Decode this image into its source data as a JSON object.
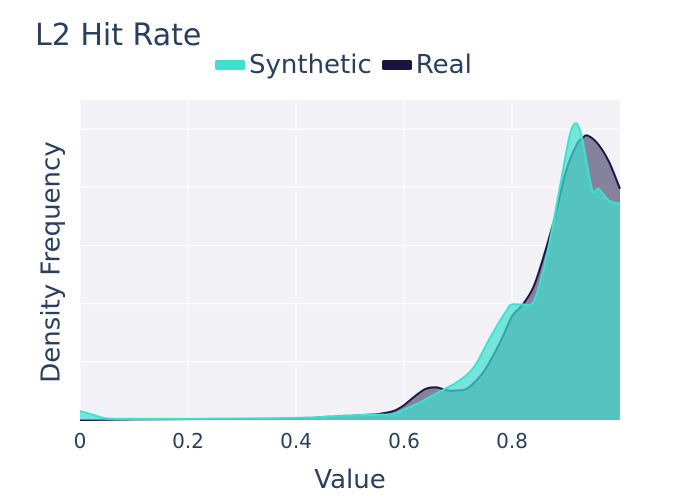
{
  "title": "L2 Hit Rate",
  "chart_data": {
    "type": "area",
    "title": "L2 Hit Rate",
    "xlabel": "Value",
    "ylabel": "Density Frequency",
    "xlim": [
      0,
      1
    ],
    "x_ticks": [
      "0",
      "0.2",
      "0.4",
      "0.6",
      "0.8"
    ],
    "x_tick_values": [
      0,
      0.2,
      0.4,
      0.6,
      0.8
    ],
    "grid": true,
    "legend_position": "top-center",
    "series": [
      {
        "name": "Synthetic",
        "color": "#40e0d0",
        "fill": "rgba(64,224,208,0.70)",
        "x": [
          0,
          0.02,
          0.05,
          0.1,
          0.2,
          0.3,
          0.4,
          0.45,
          0.5,
          0.55,
          0.58,
          0.6,
          0.63,
          0.66,
          0.7,
          0.73,
          0.76,
          0.79,
          0.8,
          0.82,
          0.84,
          0.86,
          0.88,
          0.9,
          0.91,
          0.92,
          0.93,
          0.94,
          0.95,
          0.96,
          0.98,
          1.0
        ],
        "y": [
          0.03,
          0.02,
          0.005,
          0.004,
          0.004,
          0.005,
          0.007,
          0.01,
          0.015,
          0.018,
          0.02,
          0.035,
          0.06,
          0.09,
          0.13,
          0.18,
          0.28,
          0.37,
          0.39,
          0.39,
          0.4,
          0.52,
          0.7,
          0.9,
          0.98,
          1.0,
          0.95,
          0.85,
          0.77,
          0.78,
          0.74,
          0.73
        ]
      },
      {
        "name": "Real",
        "color": "#1a1540",
        "fill": "rgba(60,55,100,0.60)",
        "x": [
          0,
          0.05,
          0.1,
          0.2,
          0.3,
          0.4,
          0.45,
          0.5,
          0.55,
          0.58,
          0.6,
          0.62,
          0.64,
          0.66,
          0.68,
          0.7,
          0.72,
          0.75,
          0.78,
          0.8,
          0.82,
          0.84,
          0.86,
          0.88,
          0.9,
          0.92,
          0.93,
          0.94,
          0.96,
          0.98,
          1.0
        ],
        "y": [
          0.0,
          0.001,
          0.002,
          0.003,
          0.004,
          0.006,
          0.01,
          0.015,
          0.02,
          0.03,
          0.05,
          0.08,
          0.105,
          0.11,
          0.1,
          0.1,
          0.11,
          0.17,
          0.27,
          0.35,
          0.39,
          0.45,
          0.56,
          0.69,
          0.84,
          0.93,
          0.95,
          0.96,
          0.93,
          0.87,
          0.78
        ]
      }
    ]
  }
}
